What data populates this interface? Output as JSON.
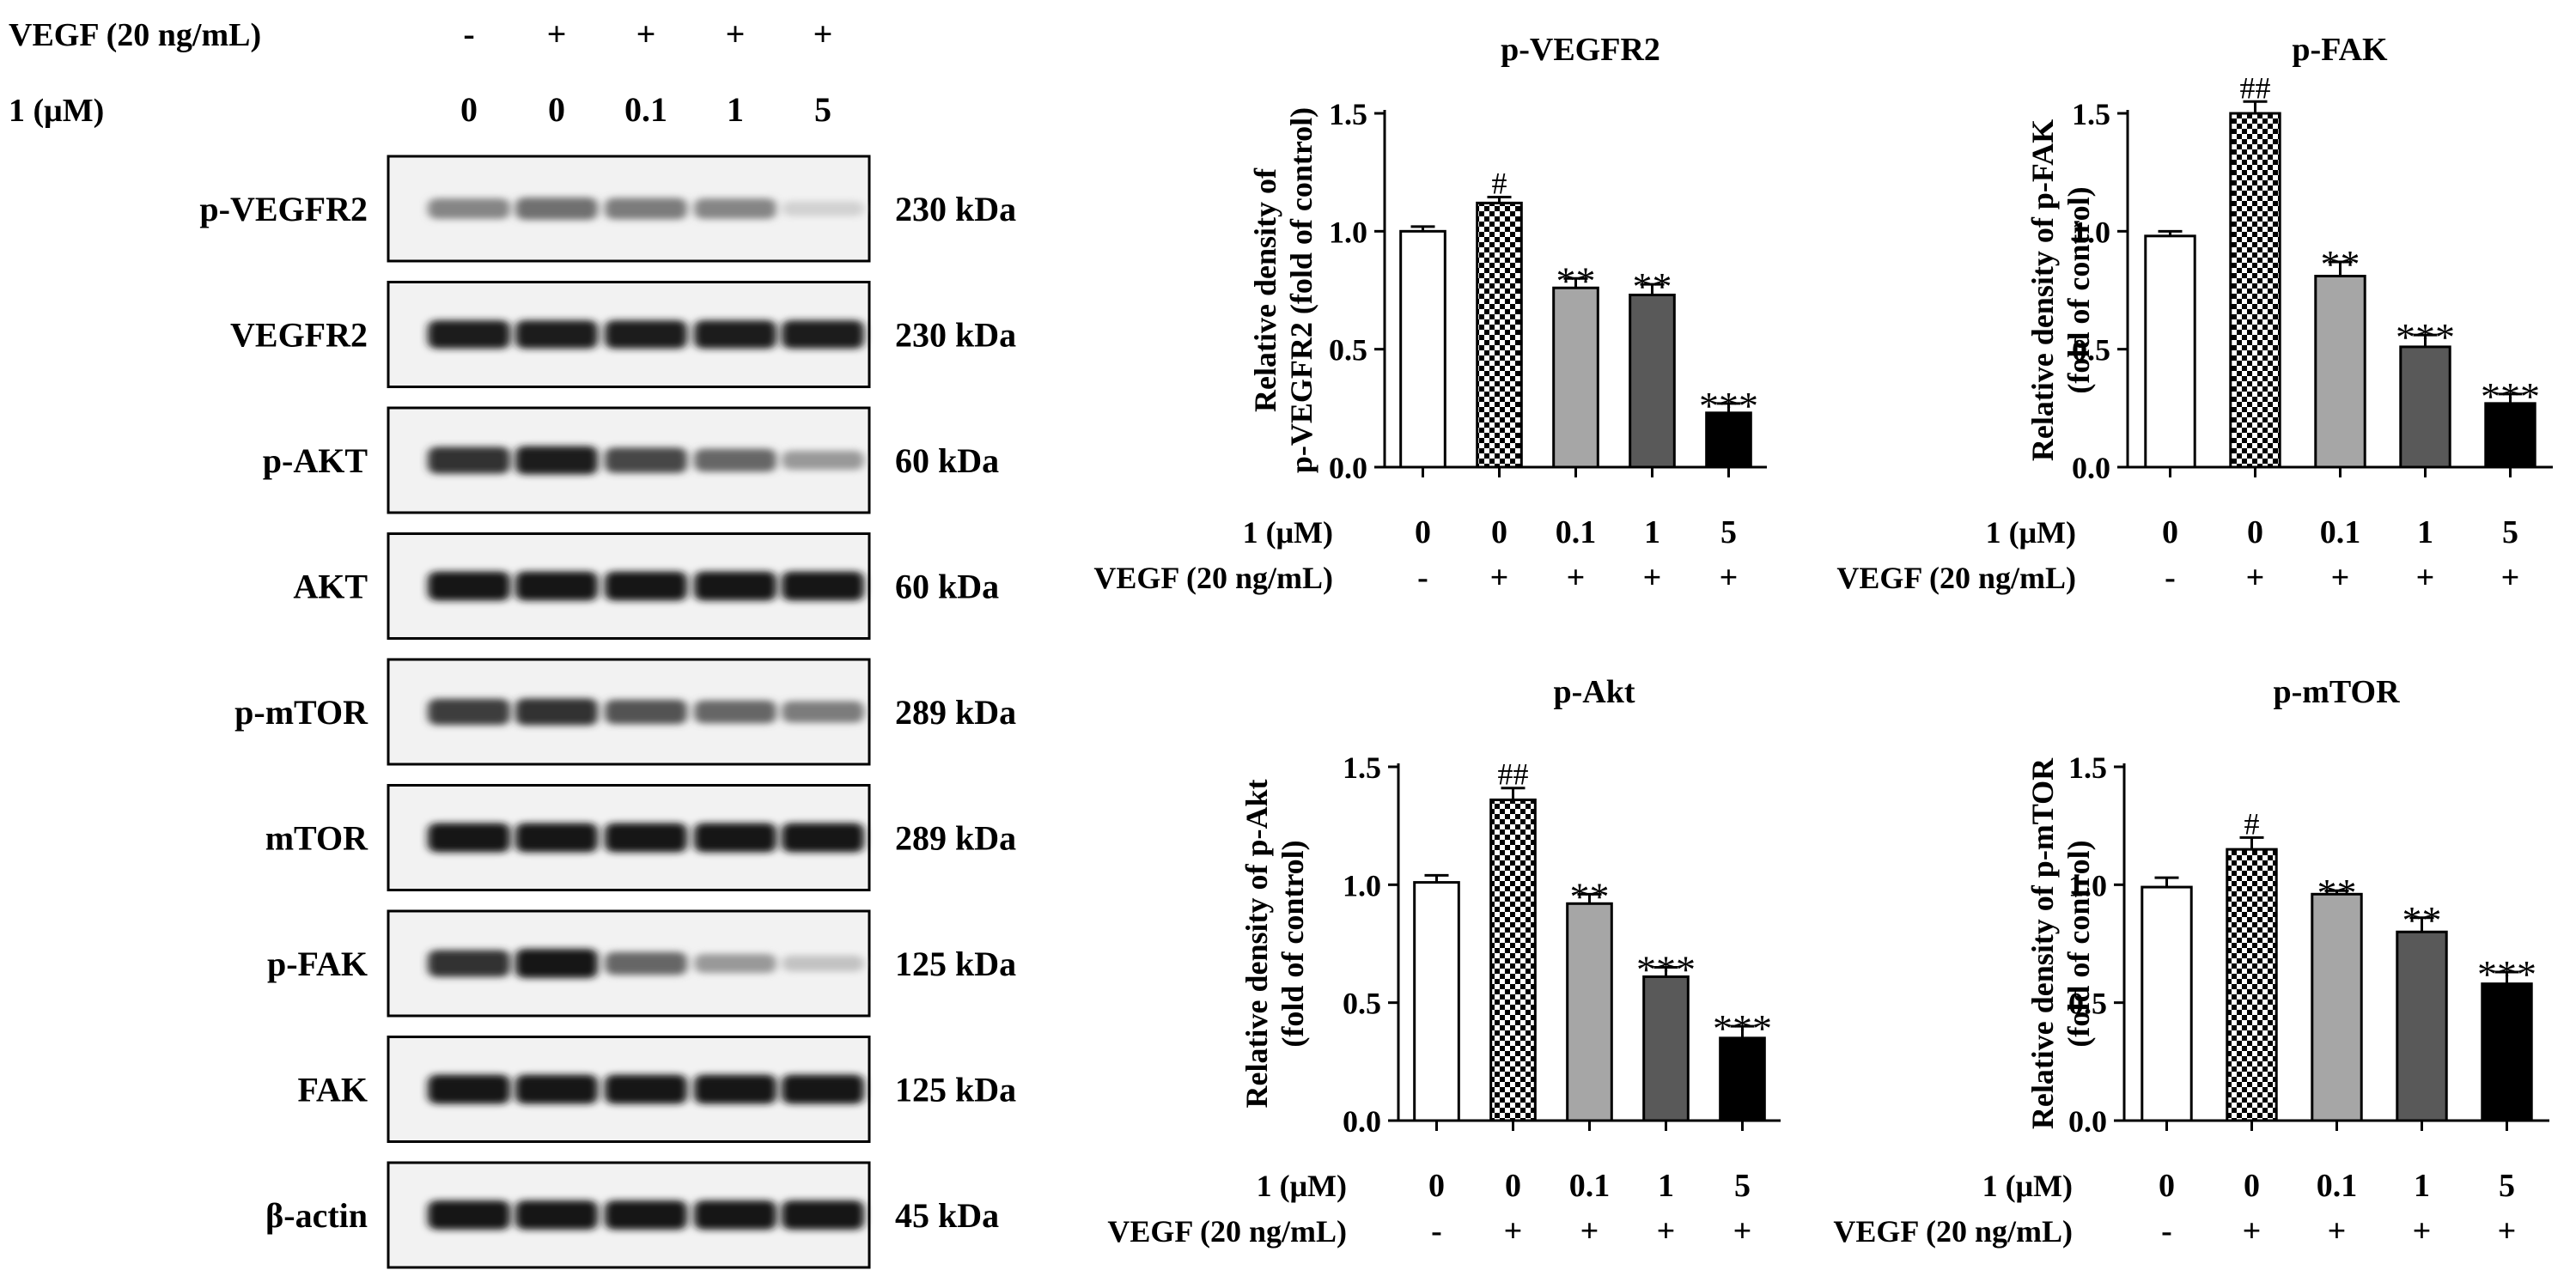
{
  "blot": {
    "treatments": [
      {
        "label": "VEGF (20 ng/mL)",
        "values": [
          "-",
          "+",
          "+",
          "+",
          "+"
        ]
      },
      {
        "label": "1 (μM)",
        "values": [
          "0",
          "0",
          "0.1",
          "1",
          "5"
        ]
      }
    ],
    "rows": [
      {
        "label": "p-VEGFR2",
        "size": "230 kDa",
        "intensity": [
          0.45,
          0.55,
          0.5,
          0.45,
          0.08
        ]
      },
      {
        "label": "VEGFR2",
        "size": "230 kDa",
        "intensity": [
          0.95,
          0.95,
          0.95,
          0.95,
          0.95
        ]
      },
      {
        "label": "p-AKT",
        "size": "60 kDa",
        "intensity": [
          0.85,
          0.95,
          0.75,
          0.6,
          0.35
        ]
      },
      {
        "label": "AKT",
        "size": "60 kDa",
        "intensity": [
          1.0,
          1.0,
          1.0,
          1.0,
          1.0
        ]
      },
      {
        "label": "p-mTOR",
        "size": "289 kDa",
        "intensity": [
          0.8,
          0.85,
          0.7,
          0.6,
          0.5
        ]
      },
      {
        "label": "mTOR",
        "size": "289 kDa",
        "intensity": [
          1.0,
          1.0,
          1.0,
          1.0,
          1.0
        ]
      },
      {
        "label": "p-FAK",
        "size": "125 kDa",
        "intensity": [
          0.85,
          1.0,
          0.6,
          0.35,
          0.15
        ]
      },
      {
        "label": "FAK",
        "size": "125 kDa",
        "intensity": [
          1.0,
          1.0,
          1.0,
          1.0,
          1.0
        ]
      },
      {
        "label": "β-actin",
        "size": "45 kDa",
        "intensity": [
          1.0,
          1.0,
          1.0,
          1.0,
          1.0
        ]
      }
    ]
  },
  "bar_styles": [
    {
      "fill": "#ffffff",
      "pattern": false
    },
    {
      "fill": "#ffffff",
      "pattern": true
    },
    {
      "fill": "#a6a6a6",
      "pattern": false
    },
    {
      "fill": "#595959",
      "pattern": false
    },
    {
      "fill": "#000000",
      "pattern": false
    }
  ],
  "chart_data": [
    {
      "type": "bar",
      "title": "p-VEGFR2",
      "ylabel": [
        "Relative density of",
        "p-VEGFR2 (fold of control)"
      ],
      "ylim": [
        0,
        1.5
      ],
      "yticks": [
        "0.0",
        "0.5",
        "1.0",
        "1.5"
      ],
      "categories": [
        "0",
        "0",
        "0.1",
        "1",
        "5"
      ],
      "values": [
        1.0,
        1.12,
        0.76,
        0.73,
        0.23
      ],
      "errors": [
        0.02,
        0.025,
        0.04,
        0.045,
        0.04
      ],
      "annotations": [
        "",
        "#",
        "**",
        "**",
        "***"
      ],
      "xrows": [
        {
          "label": "1 (μM)",
          "values": [
            "0",
            "0",
            "0.1",
            "1",
            "5"
          ]
        },
        {
          "label": "VEGF (20 ng/mL)",
          "values": [
            "-",
            "+",
            "+",
            "+",
            "+"
          ]
        }
      ]
    },
    {
      "type": "bar",
      "title": "p-FAK",
      "ylabel": [
        "Relative density of p-FAK",
        "(fold of control)"
      ],
      "ylim": [
        0,
        1.5
      ],
      "yticks": [
        "0.0",
        "0.5",
        "1.0",
        "1.5"
      ],
      "categories": [
        "0",
        "0",
        "0.1",
        "1",
        "5"
      ],
      "values": [
        0.98,
        1.5,
        0.81,
        0.51,
        0.27
      ],
      "errors": [
        0.02,
        0.05,
        0.06,
        0.05,
        0.04
      ],
      "annotations": [
        "",
        "##",
        "**",
        "***",
        "***"
      ],
      "xrows": [
        {
          "label": "1 (μM)",
          "values": [
            "0",
            "0",
            "0.1",
            "1",
            "5"
          ]
        },
        {
          "label": "VEGF (20 ng/mL)",
          "values": [
            "-",
            "+",
            "+",
            "+",
            "+"
          ]
        }
      ]
    },
    {
      "type": "bar",
      "title": "p-Akt",
      "ylabel": [
        "Relative density of p-Akt",
        "(fold of control)"
      ],
      "ylim": [
        0,
        1.5
      ],
      "yticks": [
        "0.0",
        "0.5",
        "1.0",
        "1.5"
      ],
      "categories": [
        "0",
        "0",
        "0.1",
        "1",
        "5"
      ],
      "values": [
        1.01,
        1.36,
        0.92,
        0.61,
        0.35
      ],
      "errors": [
        0.03,
        0.05,
        0.04,
        0.04,
        0.05
      ],
      "annotations": [
        "",
        "##",
        "**",
        "***",
        "***"
      ],
      "xrows": [
        {
          "label": "1 (μM)",
          "values": [
            "0",
            "0",
            "0.1",
            "1",
            "5"
          ]
        },
        {
          "label": "VEGF (20 ng/mL)",
          "values": [
            "-",
            "+",
            "+",
            "+",
            "+"
          ]
        }
      ]
    },
    {
      "type": "bar",
      "title": "p-mTOR",
      "ylabel": [
        "Relative density of p-mTOR",
        "(fold of control)"
      ],
      "ylim": [
        0,
        1.5
      ],
      "yticks": [
        "0.0",
        "0.5",
        "1.0",
        "1.5"
      ],
      "categories": [
        "0",
        "0",
        "0.1",
        "1",
        "5"
      ],
      "values": [
        0.99,
        1.15,
        0.96,
        0.8,
        0.58
      ],
      "errors": [
        0.04,
        0.05,
        0.015,
        0.06,
        0.05
      ],
      "annotations": [
        "",
        "#",
        "**",
        "**",
        "***"
      ],
      "xrows": [
        {
          "label": "1 (μM)",
          "values": [
            "0",
            "0",
            "0.1",
            "1",
            "5"
          ]
        },
        {
          "label": "VEGF (20 ng/mL)",
          "values": [
            "-",
            "+",
            "+",
            "+",
            "+"
          ]
        }
      ]
    }
  ]
}
